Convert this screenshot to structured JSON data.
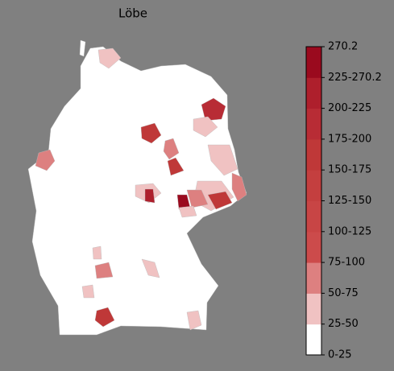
{
  "title": "Löbe",
  "colorbar": {
    "labels": [
      "0-25",
      "25-50",
      "50-75",
      "75-100",
      "100-125",
      "125-150",
      "150-175",
      "175-200",
      "200-225",
      "225-270.2",
      "270.2"
    ],
    "colors": [
      "#ffffff",
      "#f0c2c2",
      "#dd8080",
      "#cc4b4b",
      "#c84545",
      "#c43f3f",
      "#bf3838",
      "#b82c35",
      "#ae1f2c",
      "#9a0a1e"
    ]
  }
}
